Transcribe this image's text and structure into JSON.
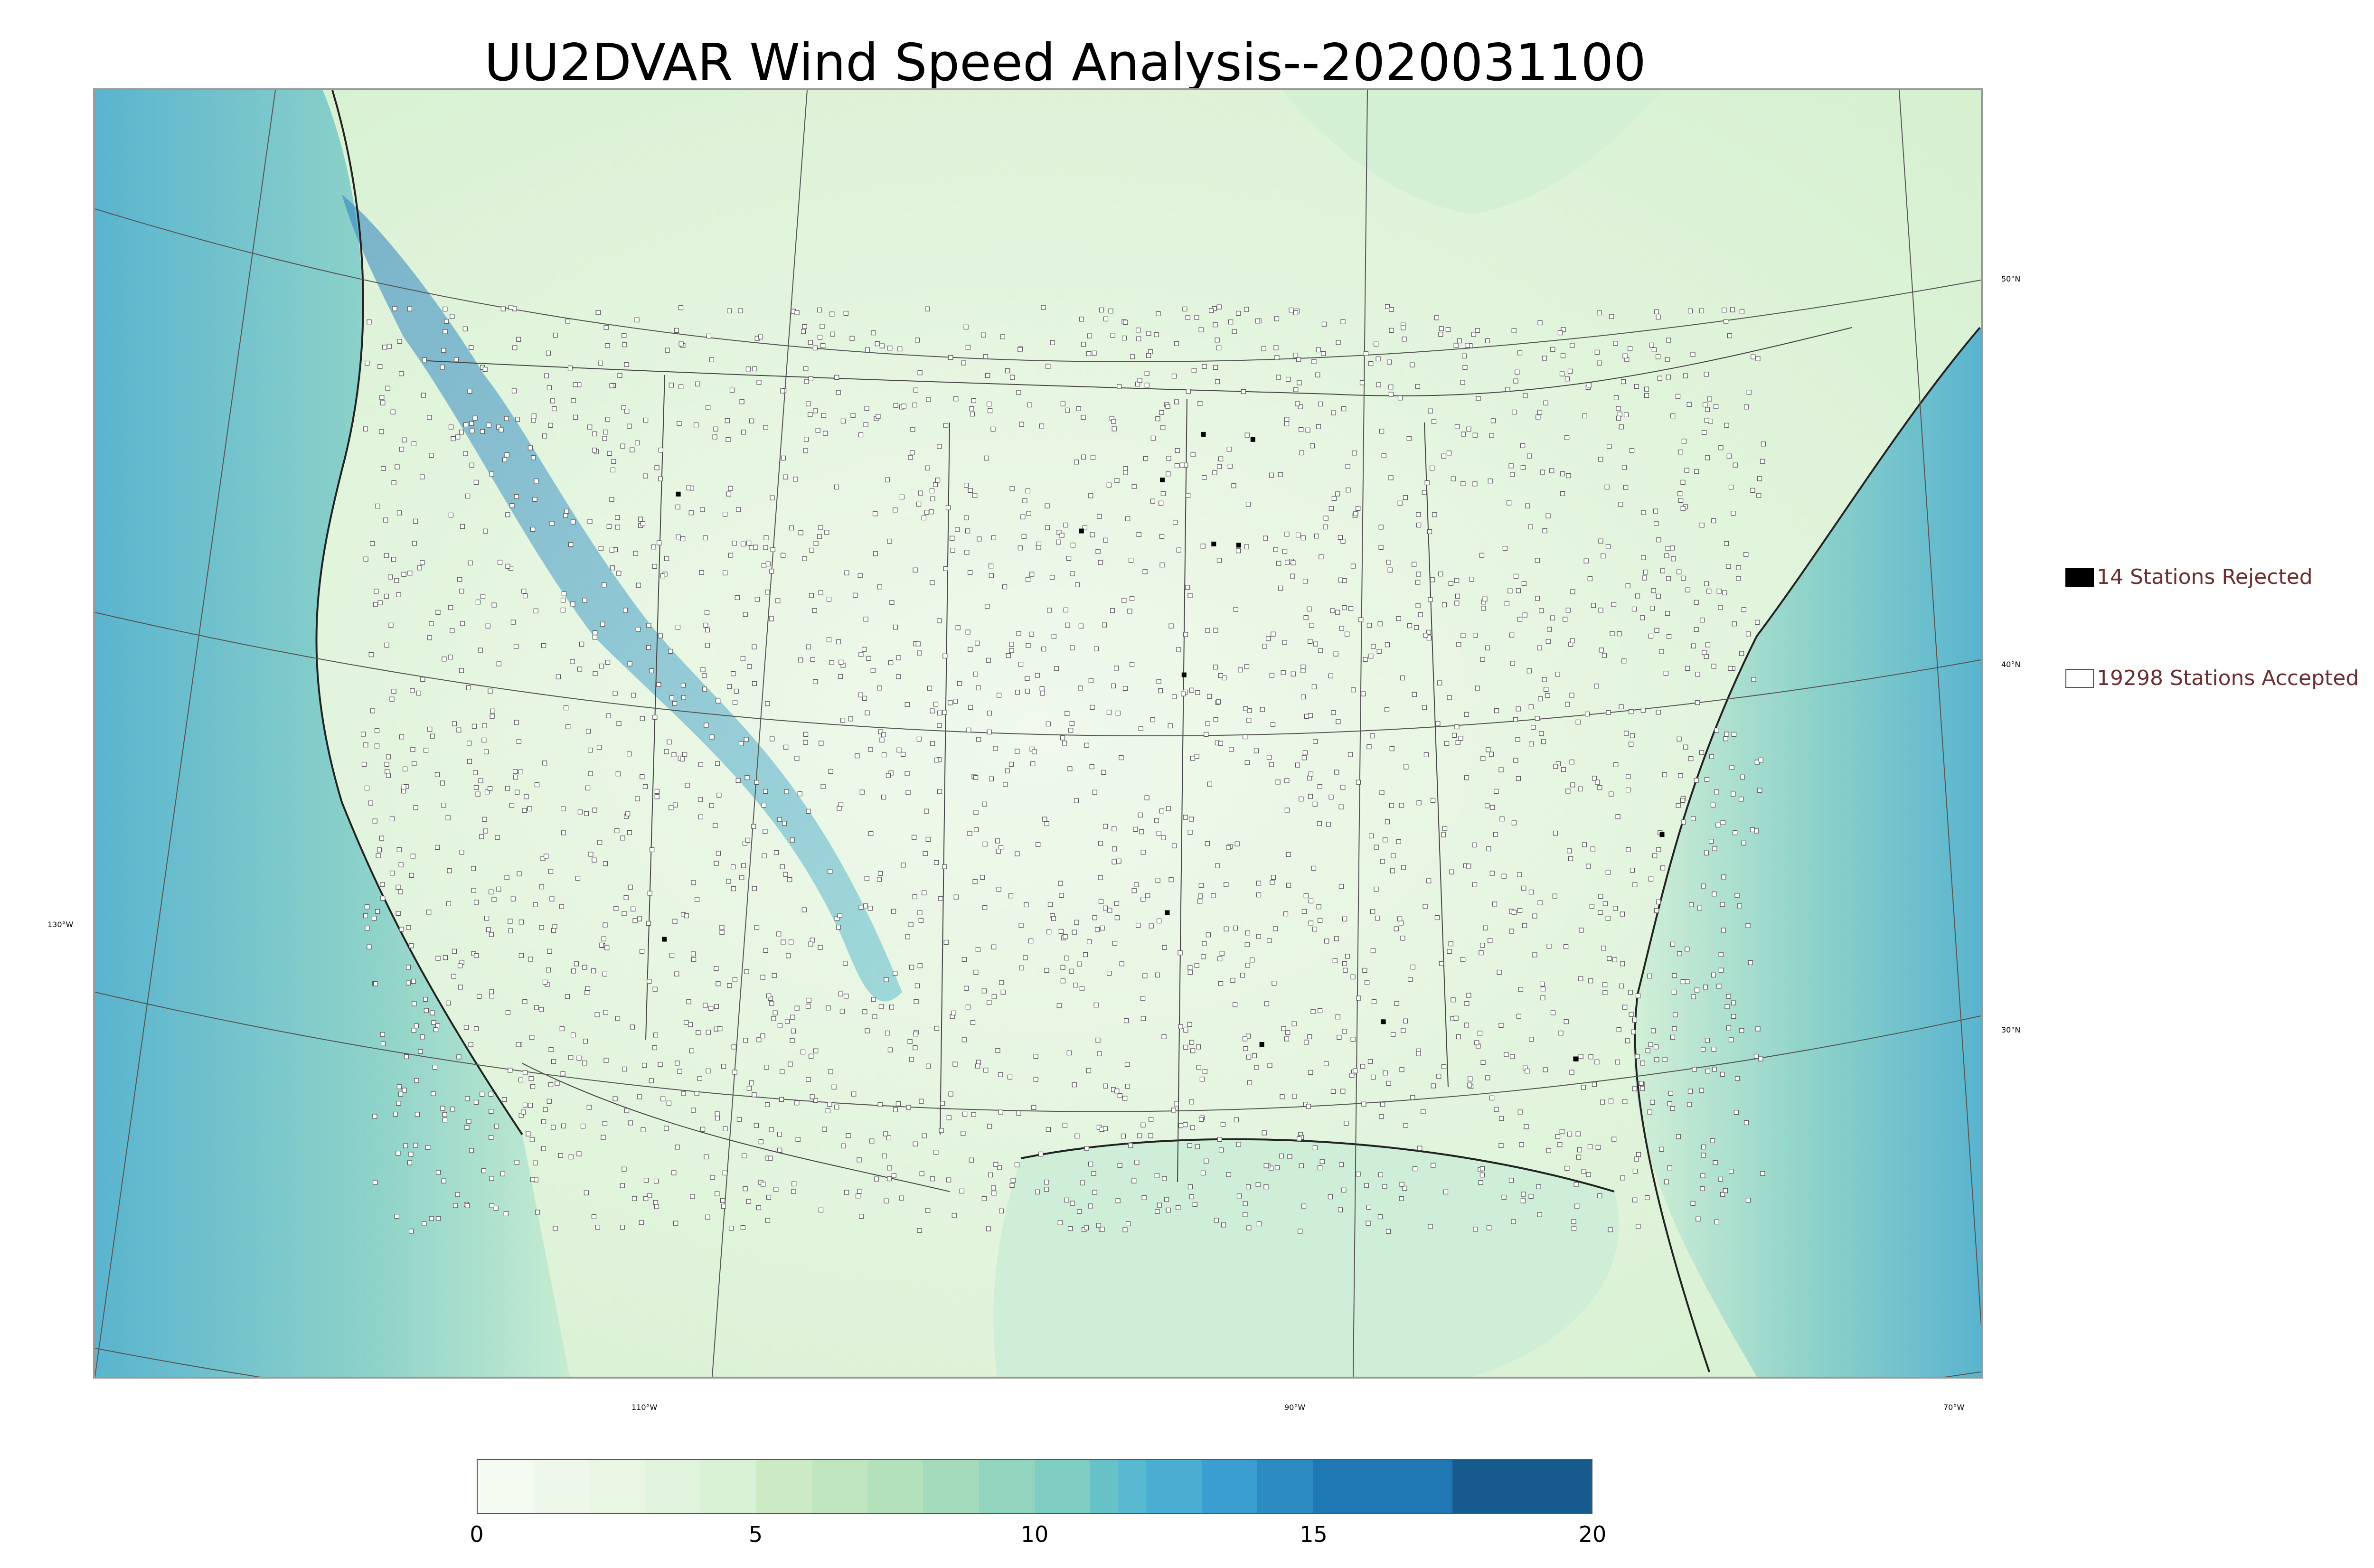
{
  "title": "UU2DVAR Wind Speed Analysis--2020031100",
  "map": {
    "lat_labels": [
      "50°N",
      "40°N",
      "30°N"
    ],
    "lon_labels": [
      "130°W",
      "110°W",
      "90°W",
      "70°W"
    ],
    "colors": {
      "land_light": "#eaf6e3",
      "land_mid": "#c8ebc2",
      "ocean": "#8fd3c9",
      "ocean_deep": "#4aa7cf",
      "mountain_jet": "#2a88c2",
      "border": "#222222"
    }
  },
  "legend": {
    "rejected_label": "14 Stations Rejected",
    "accepted_label": "19298 Stations Accepted",
    "rejected_color": "#000000",
    "accepted_color": "#ffffff"
  },
  "colorbar": {
    "ticks": [
      "0",
      "5",
      "10",
      "15",
      "20"
    ],
    "min": 0,
    "max": 20,
    "levels": [
      0,
      1,
      2,
      3,
      4,
      5,
      6,
      7,
      8,
      9,
      10,
      11,
      11.5,
      12,
      13,
      14,
      15,
      17.5,
      20
    ],
    "colors": [
      "#f4fbf0",
      "#eef8ea",
      "#e8f6e3",
      "#e1f3dc",
      "#d8f0d3",
      "#ccebc5",
      "#c0e6bf",
      "#b2e1bc",
      "#a3dbbc",
      "#92d4bd",
      "#7fccc0",
      "#66c2c6",
      "#58b9d1",
      "#4aaed2",
      "#3b9ed0",
      "#2d8bc3",
      "#1f78b3",
      "#175a8d"
    ]
  }
}
